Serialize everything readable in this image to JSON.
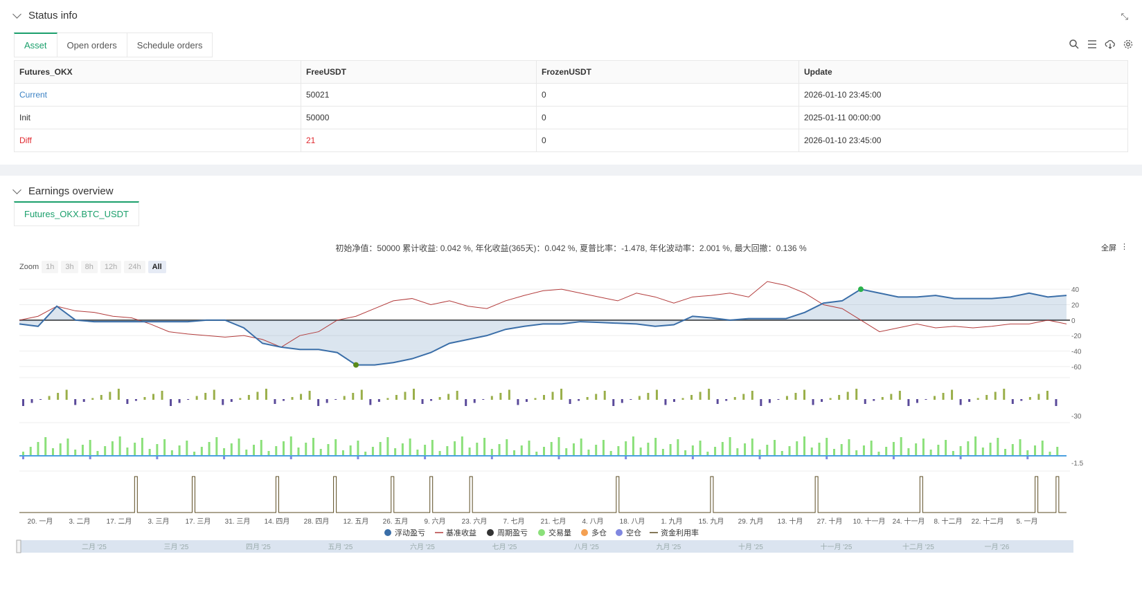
{
  "status": {
    "title": "Status info",
    "tabs": [
      "Asset",
      "Open orders",
      "Schedule orders"
    ],
    "tools": [
      "search-icon",
      "menu-icon",
      "cloud-download-icon",
      "gear-icon"
    ],
    "table": {
      "headers": [
        "Futures_OKX",
        "FreeUSDT",
        "FrozenUSDT",
        "Update"
      ],
      "rows": [
        [
          "Current",
          "50021",
          "0",
          "2026-01-10 23:45:00"
        ],
        [
          "Init",
          "50000",
          "0",
          "2025-01-11 00:00:00"
        ],
        [
          "Diff",
          "21",
          "0",
          "2026-01-10 23:45:00"
        ]
      ]
    }
  },
  "earnings": {
    "title": "Earnings overview",
    "tab": "Futures_OKX.BTC_USDT",
    "stats": "初始净值：50000 累计收益: 0.042 %, 年化收益(365天)：0.042 %, 夏普比率：-1.478, 年化波动率：2.001 %, 最大回撤：0.136 %",
    "fullscreen": "全屏",
    "zoom_label": "Zoom",
    "zoom_buttons": [
      "1h",
      "3h",
      "8h",
      "12h",
      "24h",
      "All"
    ],
    "zoom_active": "All"
  },
  "chart_data": {
    "type": "line",
    "x_labels": [
      "20. 一月",
      "3. 二月",
      "17. 二月",
      "3. 三月",
      "17. 三月",
      "31. 三月",
      "14. 四月",
      "28. 四月",
      "12. 五月",
      "26. 五月",
      "9. 六月",
      "23. 六月",
      "7. 七月",
      "21. 七月",
      "4. 八月",
      "18. 八月",
      "1. 九月",
      "15. 九月",
      "29. 九月",
      "13. 十月",
      "27. 十月",
      "10. 十一月",
      "24. 十一月",
      "8. 十二月",
      "22. 十二月",
      "5. 一月"
    ],
    "y_ticks_main": [
      "40",
      "20",
      "0",
      "-20",
      "-40",
      "-60"
    ],
    "y_tick_bar": "-30",
    "y_tick_volume": "-1.5",
    "navigator_labels": [
      "二月 '25",
      "三月 '25",
      "四月 '25",
      "五月 '25",
      "六月 '25",
      "七月 '25",
      "八月 '25",
      "九月 '25",
      "十月 '25",
      "十一月 '25",
      "十二月 '25",
      "一月 '26"
    ],
    "legend": [
      {
        "name": "浮动盈亏",
        "color": "#3a6ea8",
        "shape": "dot"
      },
      {
        "name": "基准收益",
        "color": "#b23a3a",
        "shape": "line"
      },
      {
        "name": "周期盈亏",
        "color": "#333333",
        "shape": "dot"
      },
      {
        "name": "交易量",
        "color": "#8be07a",
        "shape": "dot"
      },
      {
        "name": "多仓",
        "color": "#f4a052",
        "shape": "dot"
      },
      {
        "name": "空仓",
        "color": "#8088e0",
        "shape": "dot"
      },
      {
        "name": "资金利用率",
        "color": "#5a4a20",
        "shape": "line"
      }
    ],
    "series": [
      {
        "name": "浮动盈亏",
        "values": [
          -5,
          -8,
          18,
          0,
          -2,
          -2,
          -2,
          -2,
          -2,
          -2,
          0,
          0,
          -10,
          -30,
          -35,
          -38,
          -38,
          -42,
          -58,
          -58,
          -55,
          -50,
          -42,
          -30,
          -25,
          -20,
          -12,
          -8,
          -5,
          -5,
          -2,
          -3,
          -4,
          -5,
          -8,
          -6,
          5,
          3,
          0,
          2,
          2,
          2,
          10,
          22,
          25,
          40,
          35,
          30,
          30,
          32,
          28,
          28,
          28,
          30,
          35,
          30,
          32
        ]
      },
      {
        "name": "基准收益",
        "values": [
          0,
          5,
          18,
          12,
          10,
          5,
          3,
          -5,
          -15,
          -18,
          -20,
          -22,
          -20,
          -25,
          -35,
          -20,
          -15,
          0,
          5,
          15,
          25,
          28,
          20,
          25,
          18,
          15,
          25,
          32,
          38,
          40,
          35,
          30,
          25,
          35,
          30,
          22,
          30,
          32,
          35,
          30,
          50,
          45,
          35,
          20,
          15,
          0,
          -15,
          -10,
          -5,
          -10,
          -8,
          -10,
          -8,
          -5,
          -5,
          0,
          -5
        ]
      }
    ]
  }
}
